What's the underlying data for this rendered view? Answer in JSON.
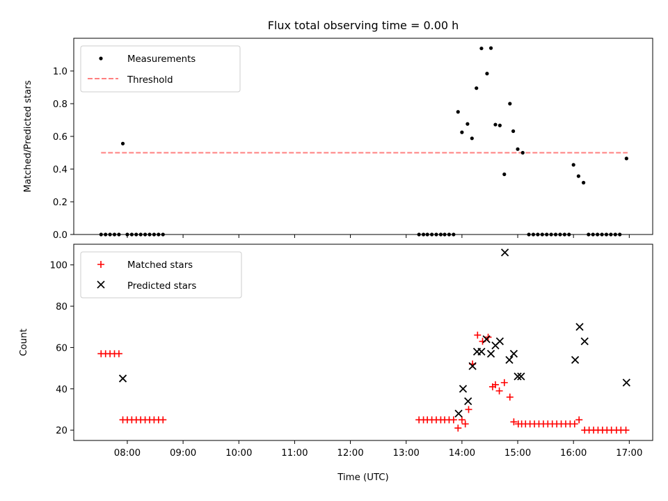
{
  "title": "Flux total observing time = 0.00 h",
  "xlabel": "Time (UTC)",
  "x_ticks": [
    {
      "hour": 8,
      "label": "08:00"
    },
    {
      "hour": 9,
      "label": "09:00"
    },
    {
      "hour": 10,
      "label": "10:00"
    },
    {
      "hour": 11,
      "label": "11:00"
    },
    {
      "hour": 12,
      "label": "12:00"
    },
    {
      "hour": 13,
      "label": "13:00"
    },
    {
      "hour": 14,
      "label": "14:00"
    },
    {
      "hour": 15,
      "label": "15:00"
    },
    {
      "hour": 16,
      "label": "16:00"
    },
    {
      "hour": 17,
      "label": "17:00"
    }
  ],
  "colors": {
    "measurement": "#000000",
    "threshold": "#ff7f7f",
    "matched": "#ff0000",
    "predicted": "#000000"
  },
  "chart_data": [
    {
      "type": "scatter",
      "panel": "top",
      "ylabel": "Matched/Predicted stars",
      "xlim": [
        7.04,
        17.42
      ],
      "ylim": [
        0,
        1.2
      ],
      "yticks": [
        "0.0",
        "0.2",
        "0.4",
        "0.6",
        "0.8",
        "1.0"
      ],
      "legend_position": "upper-left",
      "legend": [
        "Measurements",
        "Threshold"
      ],
      "threshold": {
        "value": 0.5,
        "x_range": [
          7.53,
          16.97
        ]
      },
      "series": [
        {
          "name": "Measurements",
          "x": [
            7.53,
            7.61,
            7.69,
            7.77,
            7.85,
            7.92,
            8.0,
            8.08,
            8.16,
            8.24,
            8.32,
            8.4,
            8.48,
            8.56,
            8.64,
            13.23,
            13.31,
            13.38,
            13.46,
            13.54,
            13.62,
            13.69,
            13.77,
            13.85,
            13.93,
            14.0,
            14.1,
            14.18,
            14.26,
            14.35,
            14.45,
            14.52,
            14.6,
            14.68,
            14.76,
            14.86,
            14.92,
            15.0,
            15.09,
            15.2,
            15.28,
            15.36,
            15.44,
            15.52,
            15.6,
            15.68,
            15.76,
            15.84,
            15.92,
            16.0,
            16.09,
            16.18,
            16.27,
            16.35,
            16.43,
            16.51,
            16.59,
            16.67,
            16.75,
            16.83,
            16.95
          ],
          "y": [
            0,
            0,
            0,
            0,
            0,
            0.556,
            0,
            0,
            0,
            0,
            0,
            0,
            0,
            0,
            0,
            0,
            0,
            0,
            0,
            0,
            0,
            0,
            0,
            0,
            0.75,
            0.625,
            0.676,
            0.588,
            0.895,
            1.138,
            0.984,
            1.14,
            0.672,
            0.667,
            0.368,
            0.8,
            0.632,
            0.522,
            0.5,
            0,
            0,
            0,
            0,
            0,
            0,
            0,
            0,
            0,
            0,
            0.426,
            0.357,
            0.317,
            0,
            0,
            0,
            0,
            0,
            0,
            0,
            0,
            0.465
          ]
        }
      ]
    },
    {
      "type": "scatter",
      "panel": "bottom",
      "ylabel": "Count",
      "xlim": [
        7.04,
        17.42
      ],
      "ylim": [
        15,
        110
      ],
      "yticks": [
        "20",
        "40",
        "60",
        "80",
        "100"
      ],
      "legend_position": "upper-left",
      "legend": [
        "Matched stars",
        "Predicted stars"
      ],
      "series": [
        {
          "name": "Matched stars",
          "x": [
            7.53,
            7.61,
            7.69,
            7.77,
            7.85,
            7.92,
            8.0,
            8.08,
            8.16,
            8.24,
            8.32,
            8.4,
            8.48,
            8.56,
            8.64,
            13.23,
            13.31,
            13.38,
            13.46,
            13.54,
            13.62,
            13.69,
            13.77,
            13.85,
            13.93,
            14.0,
            14.06,
            14.12,
            14.19,
            14.28,
            14.37,
            14.47,
            14.55,
            14.6,
            14.67,
            14.76,
            14.86,
            14.93,
            15.01,
            15.07,
            15.14,
            15.22,
            15.3,
            15.38,
            15.46,
            15.54,
            15.62,
            15.7,
            15.78,
            15.86,
            15.94,
            16.02,
            16.1,
            16.2,
            16.28,
            16.36,
            16.44,
            16.52,
            16.6,
            16.68,
            16.77,
            16.85,
            16.94
          ],
          "y": [
            57,
            57,
            57,
            57,
            57,
            25,
            25,
            25,
            25,
            25,
            25,
            25,
            25,
            25,
            25,
            25,
            25,
            25,
            25,
            25,
            25,
            25,
            25,
            25,
            21,
            25,
            23,
            30,
            52,
            66,
            63,
            65,
            41,
            42,
            39,
            43,
            36,
            24,
            23,
            23,
            23,
            23,
            23,
            23,
            23,
            23,
            23,
            23,
            23,
            23,
            23,
            23,
            25,
            20,
            20,
            20,
            20,
            20,
            20,
            20,
            20,
            20,
            20
          ]
        },
        {
          "name": "Predicted stars",
          "x": [
            7.92,
            13.94,
            14.02,
            14.11,
            14.19,
            14.27,
            14.35,
            14.44,
            14.52,
            14.6,
            14.68,
            14.77,
            14.85,
            14.93,
            15.0,
            15.06,
            16.03,
            16.11,
            16.2,
            16.95
          ],
          "y": [
            45,
            28,
            40,
            34,
            51,
            58,
            58,
            64,
            57,
            61,
            63,
            106,
            54,
            57,
            46,
            46,
            54,
            70,
            63,
            43
          ]
        }
      ]
    }
  ]
}
